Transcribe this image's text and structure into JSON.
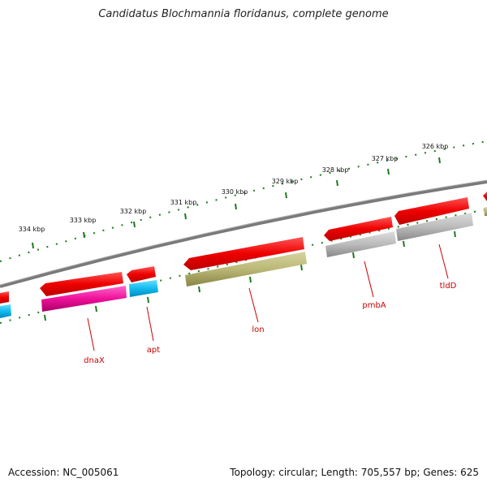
{
  "title": "Candidatus Blochmannia floridanus, complete genome",
  "footer": {
    "accession": "Accession: NC_005061",
    "stats": "Topology: circular; Length: 705,557 bp; Genes: 625"
  },
  "colors": {
    "backbone": "#888888",
    "tick": "#1e7a1e",
    "label_line": "#cc0000",
    "gene_red": "#ee1111",
    "gene_pink": "#ee2299",
    "gene_cyan": "#11bbee",
    "gene_olive": "#bbb877",
    "gene_gray": "#bbbbbb"
  },
  "scale_labels": [
    "326 kbp",
    "327 kbp",
    "328 kbp",
    "329 kbp",
    "330 kbp",
    "331 kbp",
    "332 kbp",
    "333 kbp",
    "334 kbp"
  ],
  "genes": [
    "dnaX",
    "apt",
    "lon",
    "pmbA",
    "tldD"
  ]
}
